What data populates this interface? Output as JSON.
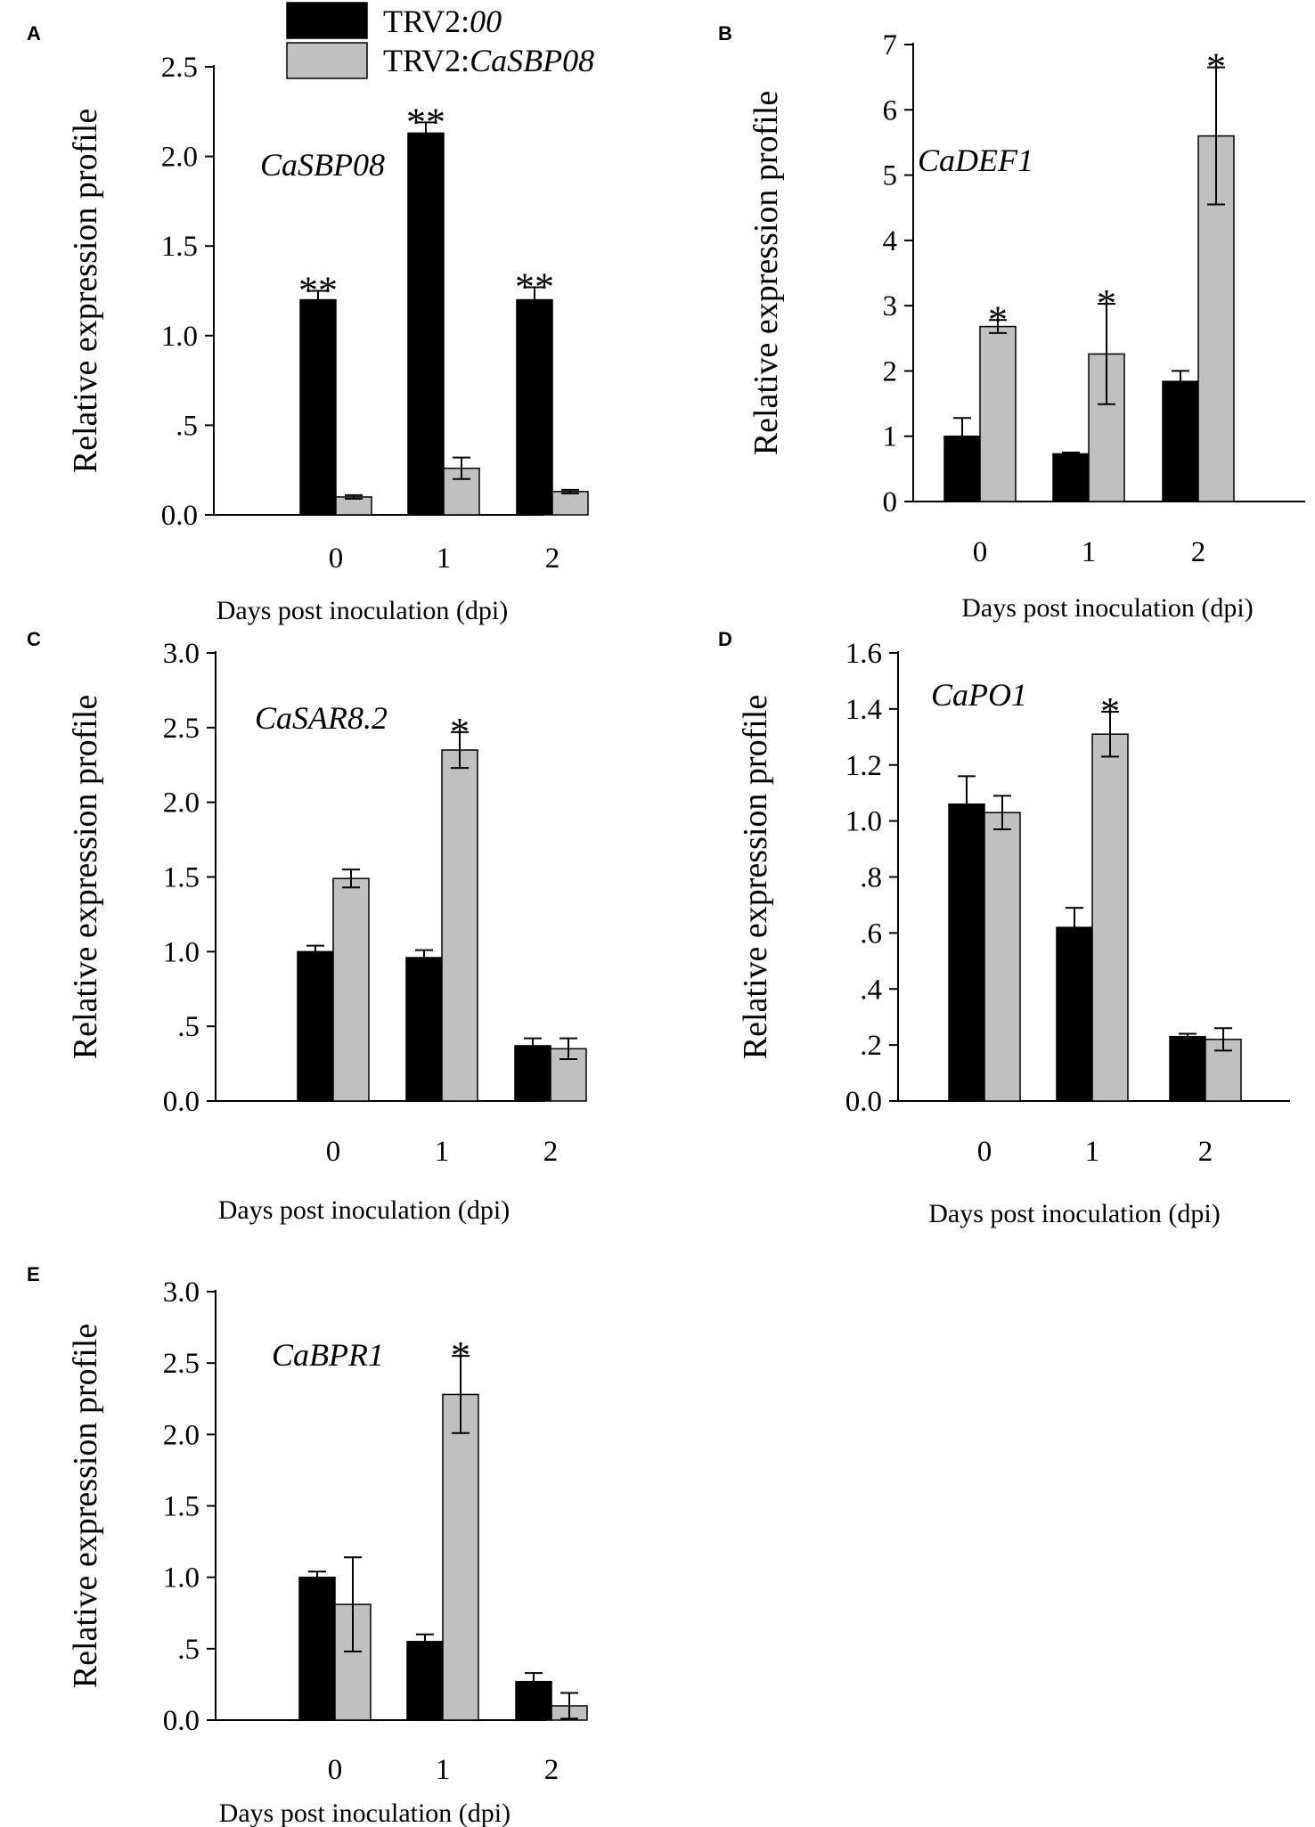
{
  "colors": {
    "series_0": "#000000",
    "series_1": "#c0c0c0",
    "axis": "#000000"
  },
  "legend": {
    "items": [
      {
        "prefix": "TRV2:",
        "italic": "00"
      },
      {
        "prefix": "TRV2:",
        "italic": "CaSBP08"
      }
    ]
  },
  "chart_data": [
    {
      "panel": "A",
      "type": "bar",
      "gene": "CaSBP08",
      "xlabel": "Days post inoculation (dpi)",
      "ylabel": "Relative expression profile",
      "categories": [
        "0",
        "1",
        "2"
      ],
      "ylim": [
        0,
        2.5
      ],
      "yticks": [
        0,
        0.5,
        1.0,
        1.5,
        2.0,
        2.5
      ],
      "ytick_labels": [
        "0.0",
        ".5",
        "1.0",
        "1.5",
        "2.0",
        "2.5"
      ],
      "series": [
        {
          "name": "TRV2:00",
          "values": [
            1.2,
            2.13,
            1.2
          ],
          "errors": [
            0.05,
            0.06,
            0.07
          ],
          "sig": [
            "**",
            "**",
            "**"
          ]
        },
        {
          "name": "TRV2:CaSBP08",
          "values": [
            0.1,
            0.26,
            0.13
          ],
          "errors": [
            0.01,
            0.06,
            0.01
          ],
          "sig": [
            "",
            "",
            ""
          ]
        }
      ]
    },
    {
      "panel": "B",
      "type": "bar",
      "gene": "CaDEF1",
      "xlabel": "Days post inoculation (dpi)",
      "ylabel": "Relative expression profile",
      "categories": [
        "0",
        "1",
        "2"
      ],
      "ylim": [
        0,
        7
      ],
      "yticks": [
        0,
        1,
        2,
        3,
        4,
        5,
        6,
        7
      ],
      "ytick_labels": [
        "0",
        "1",
        "2",
        "3",
        "4",
        "5",
        "6",
        "7"
      ],
      "series": [
        {
          "name": "TRV2:00",
          "values": [
            1.0,
            0.73,
            1.84
          ],
          "errors": [
            0.28,
            0.02,
            0.16
          ],
          "sig": [
            "",
            "",
            ""
          ]
        },
        {
          "name": "TRV2:CaSBP08",
          "values": [
            2.68,
            2.26,
            5.6
          ],
          "errors": [
            0.1,
            0.77,
            1.05
          ],
          "sig": [
            "*",
            "*",
            "*"
          ]
        }
      ]
    },
    {
      "panel": "C",
      "type": "bar",
      "gene": "CaSAR8.2",
      "xlabel": "Days post inoculation (dpi)",
      "ylabel": "Relative expression profile",
      "categories": [
        "0",
        "1",
        "2"
      ],
      "ylim": [
        0,
        3.0
      ],
      "yticks": [
        0,
        0.5,
        1.0,
        1.5,
        2.0,
        2.5,
        3.0
      ],
      "ytick_labels": [
        "0.0",
        ".5",
        "1.0",
        "1.5",
        "2.0",
        "2.5",
        "3.0"
      ],
      "series": [
        {
          "name": "TRV2:00",
          "values": [
            1.0,
            0.96,
            0.37
          ],
          "errors": [
            0.04,
            0.05,
            0.05
          ],
          "sig": [
            "",
            "",
            ""
          ]
        },
        {
          "name": "TRV2:CaSBP08",
          "values": [
            1.49,
            2.35,
            0.35
          ],
          "errors": [
            0.06,
            0.12,
            0.07
          ],
          "sig": [
            "",
            "*",
            ""
          ]
        }
      ]
    },
    {
      "panel": "D",
      "type": "bar",
      "gene": "CaPO1",
      "xlabel": "Days post inoculation (dpi)",
      "ylabel": "Relative expression profile",
      "categories": [
        "0",
        "1",
        "2"
      ],
      "ylim": [
        0,
        1.6
      ],
      "yticks": [
        0,
        0.2,
        0.4,
        0.6,
        0.8,
        1.0,
        1.2,
        1.4,
        1.6
      ],
      "ytick_labels": [
        "0.0",
        ".2",
        ".4",
        ".6",
        ".8",
        "1.0",
        "1.2",
        "1.4",
        "1.6"
      ],
      "series": [
        {
          "name": "TRV2:00",
          "values": [
            1.06,
            0.62,
            0.23
          ],
          "errors": [
            0.1,
            0.07,
            0.01
          ],
          "sig": [
            "",
            "",
            ""
          ]
        },
        {
          "name": "TRV2:CaSBP08",
          "values": [
            1.03,
            1.31,
            0.22
          ],
          "errors": [
            0.06,
            0.08,
            0.04
          ],
          "sig": [
            "",
            "*",
            ""
          ]
        }
      ]
    },
    {
      "panel": "E",
      "type": "bar",
      "gene": "CaBPR1",
      "xlabel": "Days post inoculation (dpi)",
      "ylabel": "Relative expression profile",
      "categories": [
        "0",
        "1",
        "2"
      ],
      "ylim": [
        0,
        3.0
      ],
      "yticks": [
        0,
        0.5,
        1.0,
        1.5,
        2.0,
        2.5,
        3.0
      ],
      "ytick_labels": [
        "0.0",
        ".5",
        "1.0",
        "1.5",
        "2.0",
        "2.5",
        "3.0"
      ],
      "series": [
        {
          "name": "TRV2:00",
          "values": [
            1.0,
            0.55,
            0.27
          ],
          "errors": [
            0.04,
            0.05,
            0.06
          ],
          "sig": [
            "",
            "",
            ""
          ]
        },
        {
          "name": "TRV2:CaSBP08",
          "values": [
            0.81,
            2.28,
            0.1
          ],
          "errors": [
            0.33,
            0.27,
            0.09
          ],
          "sig": [
            "",
            "*",
            ""
          ]
        }
      ]
    }
  ]
}
